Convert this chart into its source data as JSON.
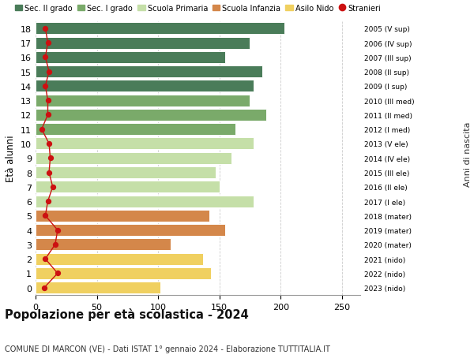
{
  "ages": [
    18,
    17,
    16,
    15,
    14,
    13,
    12,
    11,
    10,
    9,
    8,
    7,
    6,
    5,
    4,
    3,
    2,
    1,
    0
  ],
  "bar_values": [
    203,
    175,
    155,
    185,
    178,
    175,
    188,
    163,
    178,
    160,
    147,
    150,
    178,
    142,
    155,
    110,
    137,
    143,
    102
  ],
  "stranieri_values": [
    8,
    10,
    8,
    11,
    8,
    10,
    10,
    5,
    11,
    12,
    11,
    14,
    10,
    8,
    18,
    16,
    8,
    18,
    7
  ],
  "bar_colors": [
    "#4a7c59",
    "#4a7c59",
    "#4a7c59",
    "#4a7c59",
    "#4a7c59",
    "#7aaa6a",
    "#7aaa6a",
    "#7aaa6a",
    "#c5dfa8",
    "#c5dfa8",
    "#c5dfa8",
    "#c5dfa8",
    "#c5dfa8",
    "#d4874a",
    "#d4874a",
    "#d4874a",
    "#f0d060",
    "#f0d060",
    "#f0d060"
  ],
  "right_labels": [
    "2005 (V sup)",
    "2006 (IV sup)",
    "2007 (III sup)",
    "2008 (II sup)",
    "2009 (I sup)",
    "2010 (III med)",
    "2011 (II med)",
    "2012 (I med)",
    "2013 (V ele)",
    "2014 (IV ele)",
    "2015 (III ele)",
    "2016 (II ele)",
    "2017 (I ele)",
    "2018 (mater)",
    "2019 (mater)",
    "2020 (mater)",
    "2021 (nido)",
    "2022 (nido)",
    "2023 (nido)"
  ],
  "legend_labels": [
    "Sec. II grado",
    "Sec. I grado",
    "Scuola Primaria",
    "Scuola Infanzia",
    "Asilo Nido",
    "Stranieri"
  ],
  "legend_colors": [
    "#4a7c59",
    "#7aaa6a",
    "#c5dfa8",
    "#d4874a",
    "#f0d060",
    "#cc1111"
  ],
  "ylabel": "Età alunni",
  "right_ylabel": "Anni di nascita",
  "title": "Popolazione per età scolastica - 2024",
  "subtitle": "COMUNE DI MARCON (VE) - Dati ISTAT 1° gennaio 2024 - Elaborazione TUTTITALIA.IT",
  "xlim": [
    0,
    265
  ],
  "xticks": [
    0,
    50,
    100,
    150,
    200,
    250
  ],
  "background_color": "#ffffff",
  "grid_color": "#cccccc",
  "bar_height": 0.82
}
